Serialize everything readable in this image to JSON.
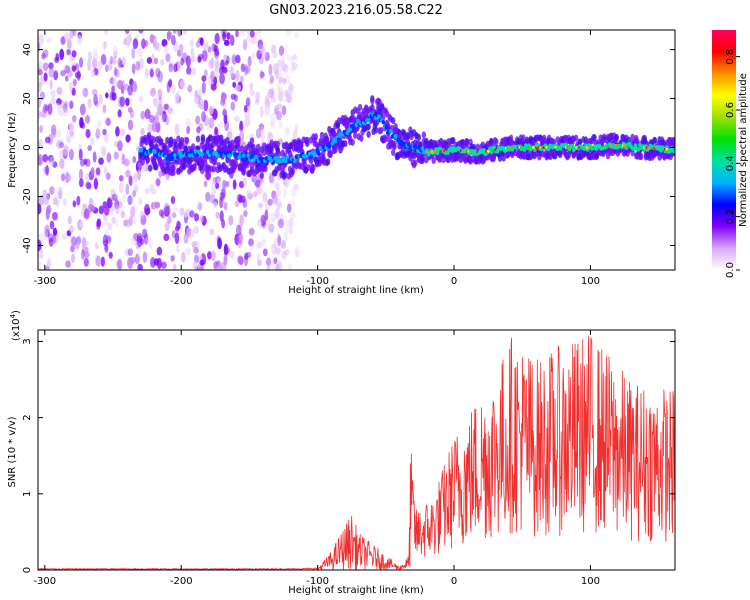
{
  "chart_data": [
    {
      "type": "heatmap",
      "title": "GN03.2023.216.05.58.C22",
      "xlabel": "Height of straight line (km)",
      "ylabel": "Frequency (Hz)",
      "xlim": [
        -305,
        162
      ],
      "ylim": [
        -50,
        48
      ],
      "xticks": [
        -300,
        -200,
        -100,
        0,
        100
      ],
      "yticks": [
        -40,
        -20,
        0,
        20,
        40
      ],
      "colorbar": {
        "label": "Normalized spectral amplitude",
        "range": [
          0.0,
          0.9
        ],
        "ticks": [
          0.0,
          0.2,
          0.4,
          0.6,
          0.8
        ],
        "colors": [
          "#ffffff",
          "#d8a8f8",
          "#8000ff",
          "#0000ff",
          "#00b4ff",
          "#00e0a0",
          "#00e000",
          "#a0e000",
          "#ffff00",
          "#ff9000",
          "#ff0000",
          "#ff0060"
        ]
      },
      "ridge": [
        {
          "x": -300,
          "f": 0
        },
        {
          "x": -260,
          "f": 0
        },
        {
          "x": -220,
          "f": -2
        },
        {
          "x": -210,
          "f": -4
        },
        {
          "x": -200,
          "f": -3
        },
        {
          "x": -180,
          "f": -2
        },
        {
          "x": -160,
          "f": -3
        },
        {
          "x": -140,
          "f": -5
        },
        {
          "x": -120,
          "f": -5
        },
        {
          "x": -100,
          "f": -2
        },
        {
          "x": -90,
          "f": 2
        },
        {
          "x": -80,
          "f": 6
        },
        {
          "x": -70,
          "f": 10
        },
        {
          "x": -60,
          "f": 13
        },
        {
          "x": -55,
          "f": 12
        },
        {
          "x": -50,
          "f": 8
        },
        {
          "x": -40,
          "f": 2
        },
        {
          "x": -30,
          "f": 0
        },
        {
          "x": -20,
          "f": -2
        },
        {
          "x": 0,
          "f": -1
        },
        {
          "x": 20,
          "f": -2
        },
        {
          "x": 40,
          "f": 0
        },
        {
          "x": 60,
          "f": 0
        },
        {
          "x": 80,
          "f": 0
        },
        {
          "x": 100,
          "f": 0
        },
        {
          "x": 120,
          "f": 1
        },
        {
          "x": 140,
          "f": 0
        },
        {
          "x": 162,
          "f": -1
        }
      ],
      "noise_region_x": [
        -305,
        -115
      ]
    },
    {
      "type": "line",
      "xlabel": "Height of straight line (km)",
      "ylabel": "SNR (10 * v/v)",
      "yscale_label": "(x10",
      "yscale_exp": "4",
      "yscale_close": ")",
      "xlim": [
        -305,
        162
      ],
      "ylim": [
        0,
        3.15
      ],
      "xticks": [
        -300,
        -200,
        -100,
        0,
        100
      ],
      "yticks": [
        0,
        1,
        2,
        3
      ],
      "color": "#f03030",
      "envelope": [
        {
          "x": -305,
          "y": 0.02
        },
        {
          "x": -120,
          "y": 0.02
        },
        {
          "x": -100,
          "y": 0.03
        },
        {
          "x": -90,
          "y": 0.25
        },
        {
          "x": -80,
          "y": 0.6
        },
        {
          "x": -75,
          "y": 0.75
        },
        {
          "x": -70,
          "y": 0.5
        },
        {
          "x": -60,
          "y": 0.35
        },
        {
          "x": -50,
          "y": 0.2
        },
        {
          "x": -40,
          "y": 0.05
        },
        {
          "x": -33,
          "y": 0.2
        },
        {
          "x": -32,
          "y": 1.7
        },
        {
          "x": -28,
          "y": 0.8
        },
        {
          "x": -15,
          "y": 1.0
        },
        {
          "x": 0,
          "y": 1.8
        },
        {
          "x": 20,
          "y": 2.4
        },
        {
          "x": 30,
          "y": 2.6
        },
        {
          "x": 43,
          "y": 3.15
        },
        {
          "x": 60,
          "y": 2.8
        },
        {
          "x": 100,
          "y": 3.15
        },
        {
          "x": 130,
          "y": 2.5
        },
        {
          "x": 162,
          "y": 2.4
        }
      ]
    }
  ]
}
